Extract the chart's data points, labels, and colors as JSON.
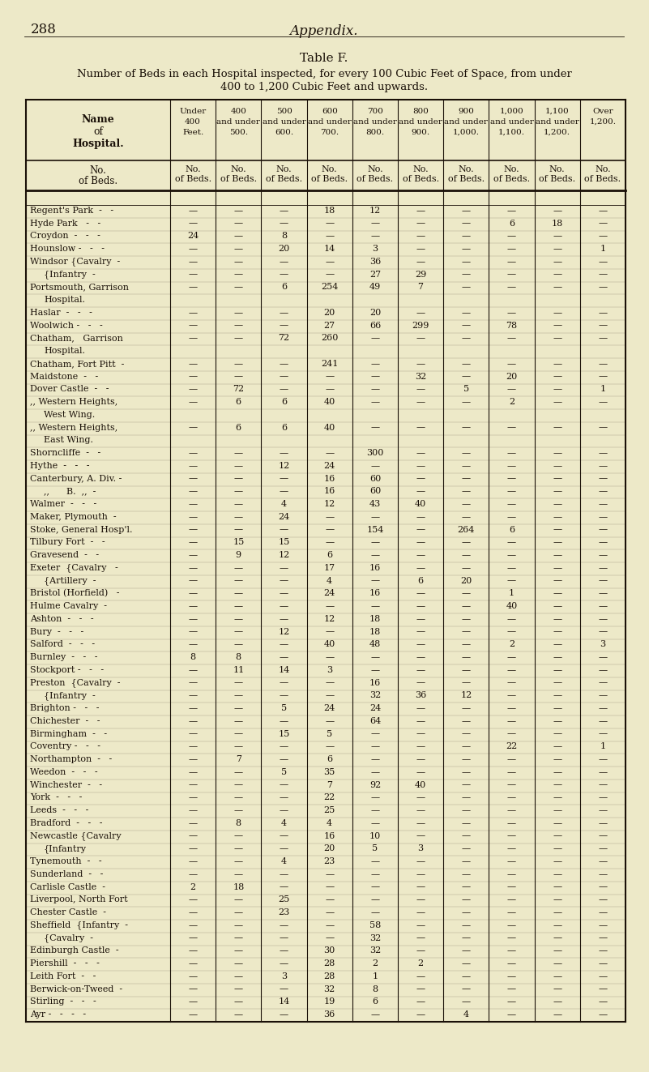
{
  "page_number": "288",
  "page_title": "Appendix.",
  "table_title": "Table F.",
  "table_subtitle_line1": "Number of Beds in each Hospital inspected, for every 100 Cubic Feet of Space, from under",
  "table_subtitle_line2": "400 to 1,200 Cubic Feet and upwards.",
  "bg_color": "#ede9c8",
  "text_color": "#1a1008",
  "line_color": "#1a1008",
  "rows": [
    [
      "Regent's Park  -   -",
      "—",
      "—",
      "—",
      "18",
      "12",
      "—",
      "—",
      "—",
      "—",
      "—"
    ],
    [
      "Hyde Park   -   -",
      "—",
      "—",
      "—",
      "—",
      "—",
      "—",
      "—",
      "6",
      "18",
      "—"
    ],
    [
      "Croydon  -   -   -",
      "24",
      "—",
      "8",
      "—",
      "—",
      "—",
      "—",
      "—",
      "—",
      "—"
    ],
    [
      "Hounslow -   -   -",
      "—",
      "—",
      "20",
      "14",
      "3",
      "—",
      "—",
      "—",
      "—",
      "1"
    ],
    [
      "Windsor {Cavalry  -",
      "—",
      "—",
      "—",
      "—",
      "36",
      "—",
      "—",
      "—",
      "—",
      "—"
    ],
    [
      "         {Infantry  -",
      "—",
      "—",
      "—",
      "—",
      "27",
      "29",
      "—",
      "—",
      "—",
      "—"
    ],
    [
      "Portsmouth, Garrison",
      "—",
      "—",
      "6",
      "254",
      "49",
      "7",
      "—",
      "—",
      "—",
      "—"
    ],
    [
      "  Hospital.",
      null,
      null,
      null,
      null,
      null,
      null,
      null,
      null,
      null,
      null
    ],
    [
      "Haslar  -   -   -",
      "—",
      "—",
      "—",
      "20",
      "20",
      "—",
      "—",
      "—",
      "—",
      "—"
    ],
    [
      "Woolwich -   -   -",
      "—",
      "—",
      "—",
      "27",
      "66",
      "299",
      "—",
      "78",
      "—",
      "—"
    ],
    [
      "Chatham,   Garrison",
      "—",
      "—",
      "72",
      "260",
      "—",
      "—",
      "—",
      "—",
      "—",
      "—"
    ],
    [
      "  Hospital.",
      null,
      null,
      null,
      null,
      null,
      null,
      null,
      null,
      null,
      null
    ],
    [
      "Chatham, Fort Pitt  -",
      "—",
      "—",
      "—",
      "241",
      "—",
      "—",
      "—",
      "—",
      "—",
      "—"
    ],
    [
      "Maidstone  -   -",
      "—",
      "—",
      "—",
      "—",
      "—",
      "32",
      "—",
      "20",
      "—",
      "—"
    ],
    [
      "Dover Castle  -   -",
      "—",
      "72",
      "—",
      "—",
      "—",
      "—",
      "5",
      "—",
      "—",
      "1"
    ],
    [
      ",, Western Heights,",
      "—",
      "6",
      "6",
      "40",
      "—",
      "—",
      "—",
      "2",
      "—",
      "—"
    ],
    [
      "      West Wing.",
      null,
      null,
      null,
      null,
      null,
      null,
      null,
      null,
      null,
      null
    ],
    [
      ",, Western Heights,",
      "—",
      "6",
      "6",
      "40",
      "—",
      "—",
      "—",
      "—",
      "—",
      "—"
    ],
    [
      "      East Wing.",
      null,
      null,
      null,
      null,
      null,
      null,
      null,
      null,
      null,
      null
    ],
    [
      "Shorncliffe  -   -",
      "—",
      "—",
      "—",
      "—",
      "300",
      "—",
      "—",
      "—",
      "—",
      "—"
    ],
    [
      "Hythe  -   -   -",
      "—",
      "—",
      "12",
      "24",
      "—",
      "—",
      "—",
      "—",
      "—",
      "—"
    ],
    [
      "Canterbury, A. Div. -",
      "—",
      "—",
      "—",
      "16",
      "60",
      "—",
      "—",
      "—",
      "—",
      "—"
    ],
    [
      "  ,,      B.  ,,  -",
      "—",
      "—",
      "—",
      "16",
      "60",
      "—",
      "—",
      "—",
      "—",
      "—"
    ],
    [
      "Walmer  -   -   -",
      "—",
      "—",
      "4",
      "12",
      "43",
      "40",
      "—",
      "—",
      "—",
      "—"
    ],
    [
      "Maker, Plymouth  -",
      "—",
      "—",
      "24",
      "—",
      "—",
      "—",
      "—",
      "—",
      "—",
      "—"
    ],
    [
      "Stoke, General Hosp'l.",
      "—",
      "—",
      "—",
      "—",
      "154",
      "—",
      "264",
      "6",
      "—",
      "—"
    ],
    [
      "Tilbury Fort  -   -",
      "—",
      "15",
      "15",
      "—",
      "—",
      "—",
      "—",
      "—",
      "—",
      "—"
    ],
    [
      "Gravesend  -   -",
      "—",
      "9",
      "12",
      "6",
      "—",
      "—",
      "—",
      "—",
      "—",
      "—"
    ],
    [
      "Exeter  {Cavalry   -",
      "—",
      "—",
      "—",
      "17",
      "16",
      "—",
      "—",
      "—",
      "—",
      "—"
    ],
    [
      "        {Artillery  -",
      "—",
      "—",
      "—",
      "4",
      "—",
      "6",
      "20",
      "—",
      "—",
      "—"
    ],
    [
      "Bristol (Horfield)   -",
      "—",
      "—",
      "—",
      "24",
      "16",
      "—",
      "—",
      "1",
      "—",
      "—"
    ],
    [
      "Hulme Cavalry  -",
      "—",
      "—",
      "—",
      "—",
      "—",
      "—",
      "—",
      "40",
      "—",
      "—"
    ],
    [
      "Ashton  -   -   -",
      "—",
      "—",
      "—",
      "12",
      "18",
      "—",
      "—",
      "—",
      "—",
      "—"
    ],
    [
      "Bury  -   -   -",
      "—",
      "—",
      "12",
      "—",
      "18",
      "—",
      "—",
      "—",
      "—",
      "—"
    ],
    [
      "Salford  -   -   -",
      "—",
      "—",
      "—",
      "40",
      "48",
      "—",
      "—",
      "2",
      "—",
      "3"
    ],
    [
      "Burnley  -   -   -",
      "8",
      "8",
      "—",
      "—",
      "—",
      "—",
      "—",
      "—",
      "—",
      "—"
    ],
    [
      "Stockport -   -   -",
      "—",
      "11",
      "14",
      "3",
      "—",
      "—",
      "—",
      "—",
      "—",
      "—"
    ],
    [
      "Preston  {Cavalry  -",
      "—",
      "—",
      "—",
      "—",
      "16",
      "—",
      "—",
      "—",
      "—",
      "—"
    ],
    [
      "         {Infantry  -",
      "—",
      "—",
      "—",
      "—",
      "32",
      "36",
      "12",
      "—",
      "—",
      "—"
    ],
    [
      "Brighton -   -   -",
      "—",
      "—",
      "5",
      "24",
      "24",
      "—",
      "—",
      "—",
      "—",
      "—"
    ],
    [
      "Chichester  -   -",
      "—",
      "—",
      "—",
      "—",
      "64",
      "—",
      "—",
      "—",
      "—",
      "—"
    ],
    [
      "Birmingham  -   -",
      "—",
      "—",
      "15",
      "5",
      "—",
      "—",
      "—",
      "—",
      "—",
      "—"
    ],
    [
      "Coventry -   -   -",
      "—",
      "—",
      "—",
      "—",
      "—",
      "—",
      "—",
      "22",
      "—",
      "1"
    ],
    [
      "Northampton  -   -",
      "—",
      "7",
      "—",
      "6",
      "—",
      "—",
      "—",
      "—",
      "—",
      "—"
    ],
    [
      "Weedon  -   -   -",
      "—",
      "—",
      "5",
      "35",
      "—",
      "—",
      "—",
      "—",
      "—",
      "—"
    ],
    [
      "Winchester  -   -",
      "—",
      "—",
      "—",
      "7",
      "92",
      "40",
      "—",
      "—",
      "—",
      "—"
    ],
    [
      "York  -   -   -",
      "—",
      "—",
      "—",
      "22",
      "—",
      "—",
      "—",
      "—",
      "—",
      "—"
    ],
    [
      "Leeds  -   -   -",
      "—",
      "—",
      "—",
      "25",
      "—",
      "—",
      "—",
      "—",
      "—",
      "—"
    ],
    [
      "Bradford  -   -   -",
      "—",
      "8",
      "4",
      "4",
      "—",
      "—",
      "—",
      "—",
      "—",
      "—"
    ],
    [
      "Newcastle {Cavalry",
      "—",
      "—",
      "—",
      "16",
      "10",
      "—",
      "—",
      "—",
      "—",
      "—"
    ],
    [
      "          {Infantry",
      "—",
      "—",
      "—",
      "20",
      "5",
      "3",
      "—",
      "—",
      "—",
      "—"
    ],
    [
      "Tynemouth  -   -",
      "—",
      "—",
      "4",
      "23",
      "—",
      "—",
      "—",
      "—",
      "—",
      "—"
    ],
    [
      "Sunderland  -   -",
      "—",
      "—",
      "—",
      "—",
      "—",
      "—",
      "—",
      "—",
      "—",
      "—"
    ],
    [
      "Carlisle Castle  -",
      "2",
      "18",
      "—",
      "—",
      "—",
      "—",
      "—",
      "—",
      "—",
      "—"
    ],
    [
      "Liverpool, North Fort",
      "—",
      "—",
      "25",
      "—",
      "—",
      "—",
      "—",
      "—",
      "—",
      "—"
    ],
    [
      "Chester Castle  -",
      "—",
      "—",
      "23",
      "—",
      "—",
      "—",
      "—",
      "—",
      "—",
      "—"
    ],
    [
      "Sheffield  {Infantry  -",
      "—",
      "—",
      "—",
      "—",
      "58",
      "—",
      "—",
      "—",
      "—",
      "—"
    ],
    [
      "           {Cavalry  -",
      "—",
      "—",
      "—",
      "—",
      "32",
      "—",
      "—",
      "—",
      "—",
      "—"
    ],
    [
      "Edinburgh Castle  -",
      "—",
      "—",
      "—",
      "30",
      "32",
      "—",
      "—",
      "—",
      "—",
      "—"
    ],
    [
      "Piershill  -   -   -",
      "—",
      "—",
      "—",
      "28",
      "2",
      "2",
      "—",
      "—",
      "—",
      "—"
    ],
    [
      "Leith Fort  -   -",
      "—",
      "—",
      "3",
      "28",
      "1",
      "—",
      "—",
      "—",
      "—",
      "—"
    ],
    [
      "Berwick-on-Tweed  -",
      "—",
      "—",
      "—",
      "32",
      "8",
      "—",
      "—",
      "—",
      "—",
      "—"
    ],
    [
      "Stirling  -   -   -",
      "—",
      "—",
      "14",
      "19",
      "6",
      "—",
      "—",
      "—",
      "—",
      "—"
    ],
    [
      "Ayr -   -   -   -",
      "—",
      "—",
      "—",
      "36",
      "—",
      "—",
      "4",
      "—",
      "—",
      "—"
    ]
  ]
}
